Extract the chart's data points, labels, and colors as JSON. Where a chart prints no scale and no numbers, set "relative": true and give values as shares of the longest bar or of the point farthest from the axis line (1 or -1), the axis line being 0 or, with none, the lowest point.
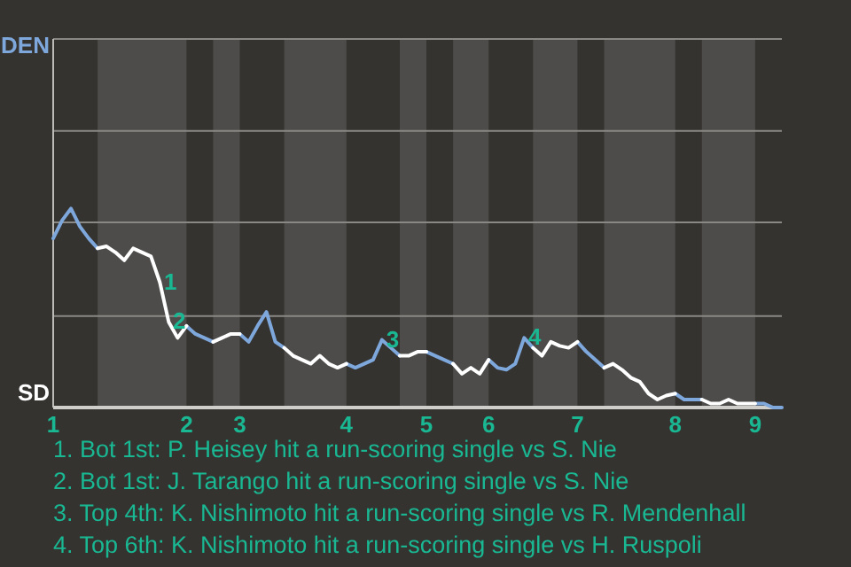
{
  "chart_data": {
    "type": "line",
    "relative": true,
    "categories": [
      "1",
      null,
      null,
      null,
      null,
      null,
      null,
      null,
      null,
      null,
      null,
      null,
      null,
      null,
      null,
      "2",
      null,
      null,
      null,
      null,
      null,
      "3",
      null,
      null,
      null,
      null,
      null,
      null,
      null,
      null,
      null,
      null,
      null,
      "4",
      null,
      null,
      null,
      null,
      null,
      null,
      null,
      null,
      "5",
      null,
      null,
      null,
      null,
      null,
      null,
      "6",
      null,
      null,
      null,
      null,
      null,
      null,
      null,
      null,
      null,
      "7",
      null,
      null,
      null,
      null,
      null,
      null,
      null,
      null,
      null,
      null,
      "8",
      null,
      null,
      null,
      null,
      null,
      null,
      null,
      null,
      "9",
      null,
      null,
      null
    ],
    "marker": "none",
    "line_style": "solid",
    "ref_lines": [
      {
        "axis": "y",
        "value": 0.46,
        "color": "#8a8885"
      },
      {
        "axis": "y",
        "value": 0.93,
        "color": "#8a8885"
      },
      {
        "axis": "y",
        "value": 1.39,
        "color": "#8a8885"
      }
    ],
    "series": [
      {
        "color": "#7ea7dc",
        "values": [
          0.85,
          0.94,
          1,
          0.91,
          0.85,
          0.8,
          null,
          null,
          null,
          null,
          null,
          null,
          null,
          null,
          null,
          0.41,
          0.37,
          0.35,
          0.33,
          null,
          null,
          0.37,
          0.33,
          0.41,
          0.48,
          0.33,
          0.3,
          null,
          null,
          null,
          null,
          null,
          null,
          0.22,
          0.2,
          0.22,
          0.24,
          0.34,
          0.3,
          0.26,
          null,
          null,
          0.28,
          0.26,
          0.24,
          0.22,
          null,
          null,
          null,
          0.24,
          0.2,
          0.19,
          0.22,
          0.35,
          0.3,
          null,
          null,
          null,
          null,
          0.33,
          0.28,
          0.24,
          0.2,
          null,
          null,
          null,
          null,
          null,
          null,
          null,
          0.07,
          0.04,
          0.04,
          0.04,
          null,
          null,
          null,
          null,
          null,
          0.02,
          0.02,
          0,
          0
        ]
      },
      {
        "color": "#ffffff",
        "values": [
          null,
          null,
          null,
          null,
          null,
          0.8,
          0.81,
          0.78,
          0.74,
          0.8,
          0.78,
          0.76,
          0.63,
          0.43,
          0.35,
          0.41,
          null,
          null,
          0.33,
          0.35,
          0.37,
          0.37,
          null,
          null,
          null,
          null,
          0.3,
          0.26,
          0.24,
          0.22,
          0.26,
          0.22,
          0.2,
          0.22,
          null,
          null,
          null,
          null,
          null,
          0.26,
          0.26,
          0.28,
          0.28,
          null,
          null,
          0.22,
          0.17,
          0.2,
          0.17,
          0.24,
          null,
          null,
          null,
          null,
          0.3,
          0.26,
          0.33,
          0.31,
          0.3,
          0.33,
          null,
          null,
          0.2,
          0.22,
          0.19,
          0.15,
          0.13,
          0.07,
          0.04,
          0.06,
          0.07,
          null,
          null,
          0.04,
          0.02,
          0.02,
          0.04,
          0.02,
          0.02,
          0.02,
          null,
          null,
          null
        ]
      }
    ],
    "annotations": [
      {
        "text": "1",
        "y": 0.63
      },
      {
        "text": "2",
        "y": 0.43
      },
      {
        "text": "3",
        "y": 0.34
      },
      {
        "text": "4",
        "y": 0.35
      },
      "DEN",
      "SD",
      "1. Bot 1st: P. Heisey hit a run-scoring single vs S. Nie",
      "2. Bot 1st: J. Tarango hit a run-scoring single vs S. Nie",
      "3. Top 4th: K. Nishimoto hit a run-scoring single vs R. Mendenhall",
      "4. Top 6th: K. Nishimoto hit a run-scoring single vs H. Ruspoli"
    ]
  }
}
